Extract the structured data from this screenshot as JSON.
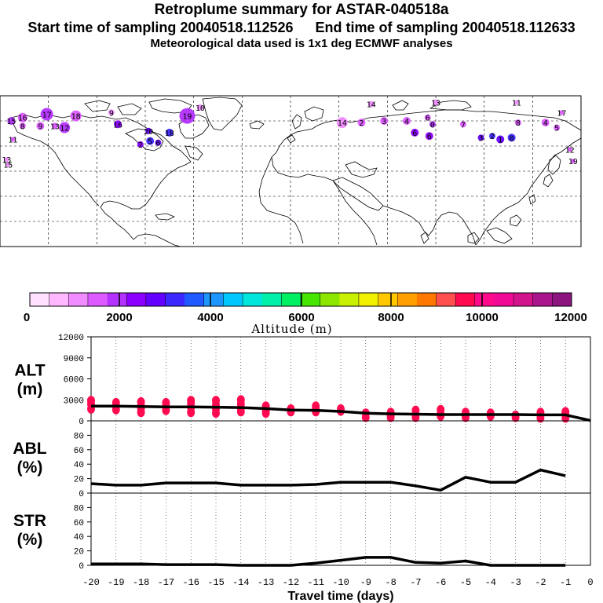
{
  "header": {
    "title": "Retroplume summary for ASTAR-040518a",
    "start_label": "Start time of sampling 20040518.112526",
    "end_label": "End time of sampling 20040518.112633",
    "met_label": "Meteorological data used is 1x1 deg ECMWF analyses"
  },
  "colorbar": {
    "colors": [
      "#ffe0ff",
      "#ffb8ff",
      "#f08cff",
      "#dc5aff",
      "#b432ff",
      "#8c00ff",
      "#6400ff",
      "#3c28ff",
      "#1e5aff",
      "#1e96ff",
      "#00c8ff",
      "#00e6dc",
      "#00f0aa",
      "#00f064",
      "#46e600",
      "#8ce600",
      "#c8f000",
      "#f0f000",
      "#ffc800",
      "#ffa000",
      "#ff7800",
      "#ff5050",
      "#ff0a50",
      "#ff0a8c",
      "#f00a96",
      "#d2148c",
      "#aa148c",
      "#8c147f"
    ],
    "ticks": [
      "0",
      "2000",
      "4000",
      "6000",
      "8000",
      "10000",
      "12000"
    ],
    "label": "Altitude (m)"
  },
  "map": {
    "clusters": [
      {
        "label": "15",
        "lon": -173,
        "lat": 75,
        "color": "#b432ff",
        "size": 5
      },
      {
        "label": "16",
        "lon": -166,
        "lat": 77,
        "color": "#dc5aff",
        "size": 6
      },
      {
        "label": "17",
        "lon": -151,
        "lat": 79,
        "color": "#b432ff",
        "size": 8
      },
      {
        "label": "18",
        "lon": -133,
        "lat": 78,
        "color": "#dc5aff",
        "size": 7
      },
      {
        "label": "9",
        "lon": -111,
        "lat": 80,
        "color": "#f08cff",
        "size": 4
      },
      {
        "label": "19",
        "lon": -64,
        "lat": 78,
        "color": "#b432ff",
        "size": 10
      },
      {
        "label": "10",
        "lon": -56,
        "lat": 83,
        "color": "#f08cff",
        "size": 4
      },
      {
        "label": "9",
        "lon": -155,
        "lat": 72,
        "color": "#dc5aff",
        "size": 5
      },
      {
        "label": "13",
        "lon": -146,
        "lat": 72,
        "color": "#dc5aff",
        "size": 4
      },
      {
        "label": "12",
        "lon": -140,
        "lat": 71,
        "color": "#b432ff",
        "size": 7
      },
      {
        "label": "8",
        "lon": -166,
        "lat": 72,
        "color": "#dc5aff",
        "size": 4
      },
      {
        "label": "16",
        "lon": -107,
        "lat": 73,
        "color": "#8c00ff",
        "size": 5
      },
      {
        "label": "20",
        "lon": -88,
        "lat": 69,
        "color": "#6400ff",
        "size": 4
      },
      {
        "label": "18",
        "lon": -75,
        "lat": 68,
        "color": "#3c28ff",
        "size": 5
      },
      {
        "label": "5",
        "lon": -87,
        "lat": 63,
        "color": "#3c28ff",
        "size": 5
      },
      {
        "label": "6",
        "lon": -82,
        "lat": 62,
        "color": "#6400ff",
        "size": 4
      },
      {
        "label": "2",
        "lon": -93,
        "lat": 61,
        "color": "#8c00ff",
        "size": 4
      },
      {
        "label": "11",
        "lon": -172,
        "lat": 64,
        "color": "#dc5aff",
        "size": 3
      },
      {
        "label": "13",
        "lon": -176,
        "lat": 52,
        "color": "#f08cff",
        "size": 3
      },
      {
        "label": "15",
        "lon": -175,
        "lat": 49,
        "color": "#f08cff",
        "size": 3
      },
      {
        "label": "14",
        "lon": 32,
        "lat": 74,
        "color": "#f08cff",
        "size": 7
      },
      {
        "label": "2",
        "lon": 44,
        "lat": 74,
        "color": "#dc5aff",
        "size": 5
      },
      {
        "label": "3",
        "lon": 58,
        "lat": 75,
        "color": "#dc5aff",
        "size": 5
      },
      {
        "label": "14",
        "lon": 50,
        "lat": 85,
        "color": "#f08cff",
        "size": 4
      },
      {
        "label": "4",
        "lon": 72,
        "lat": 75,
        "color": "#dc5aff",
        "size": 5
      },
      {
        "label": "6",
        "lon": 85,
        "lat": 77,
        "color": "#dc5aff",
        "size": 4
      },
      {
        "label": "13",
        "lon": 90,
        "lat": 86,
        "color": "#f08cff",
        "size": 4
      },
      {
        "label": "0",
        "lon": 88,
        "lat": 73,
        "color": "#b432ff",
        "size": 4
      },
      {
        "label": "7",
        "lon": 107,
        "lat": 73,
        "color": "#dc5aff",
        "size": 4
      },
      {
        "label": "11",
        "lon": 140,
        "lat": 86,
        "color": "#f08cff",
        "size": 3
      },
      {
        "label": "8",
        "lon": 141,
        "lat": 74,
        "color": "#dc5aff",
        "size": 4
      },
      {
        "label": "4",
        "lon": 158,
        "lat": 74,
        "color": "#dc5aff",
        "size": 5
      },
      {
        "label": "5",
        "lon": 165,
        "lat": 71,
        "color": "#dc5aff",
        "size": 4
      },
      {
        "label": "6",
        "lon": 77,
        "lat": 68,
        "color": "#8c00ff",
        "size": 5
      },
      {
        "label": "6",
        "lon": 86,
        "lat": 66,
        "color": "#8c00ff",
        "size": 5
      },
      {
        "label": "3",
        "lon": 118,
        "lat": 65,
        "color": "#6400ff",
        "size": 4
      },
      {
        "label": "2",
        "lon": 125,
        "lat": 66,
        "color": "#3c28ff",
        "size": 4
      },
      {
        "label": "1",
        "lon": 130,
        "lat": 64,
        "color": "#6400ff",
        "size": 5
      },
      {
        "label": "0",
        "lon": 137,
        "lat": 65,
        "color": "#3c28ff",
        "size": 5
      },
      {
        "label": "12",
        "lon": 173,
        "lat": 58,
        "color": "#dc5aff",
        "size": 3
      },
      {
        "label": "19",
        "lon": 175,
        "lat": 51,
        "color": "#dc5aff",
        "size": 3
      },
      {
        "label": "17",
        "lon": 168,
        "lat": 80,
        "color": "#dc5aff",
        "size": 3
      }
    ]
  },
  "chart_data": [
    {
      "type": "line",
      "title": "ALT (m)",
      "row_label": "ALT",
      "row_unit": "(m)",
      "x": [
        -20,
        -19,
        -18,
        -17,
        -16,
        -15,
        -14,
        -13,
        -12,
        -11,
        -10,
        -9,
        -8,
        -7,
        -6,
        -5,
        -4,
        -3,
        -2,
        -1,
        0
      ],
      "series": [
        {
          "name": "median altitude",
          "values": [
            2100,
            2100,
            2050,
            2000,
            2000,
            1950,
            1900,
            1750,
            1550,
            1500,
            1350,
            1100,
            1000,
            950,
            900,
            900,
            900,
            900,
            850,
            850,
            50
          ]
        }
      ],
      "scatter_samples": [
        {
          "x": -20,
          "y": [
            1700,
            2400,
            2900
          ]
        },
        {
          "x": -19,
          "y": [
            1600,
            2100,
            2600
          ]
        },
        {
          "x": -18,
          "y": [
            1200,
            1800,
            2200,
            2700
          ]
        },
        {
          "x": -17,
          "y": [
            1500,
            2100,
            2600
          ]
        },
        {
          "x": -16,
          "y": [
            1200,
            1900,
            2500,
            2900
          ]
        },
        {
          "x": -15,
          "y": [
            1100,
            1700,
            2300,
            2900
          ]
        },
        {
          "x": -14,
          "y": [
            1300,
            1800,
            2400,
            3000
          ]
        },
        {
          "x": -13,
          "y": [
            1100,
            1500,
            2100
          ]
        },
        {
          "x": -12,
          "y": [
            1300,
            1700
          ]
        },
        {
          "x": -11,
          "y": [
            1300,
            1700,
            2100
          ]
        },
        {
          "x": -10,
          "y": [
            1400,
            1700
          ]
        },
        {
          "x": -9,
          "y": [
            500,
            1100
          ]
        },
        {
          "x": -8,
          "y": [
            500,
            800,
            1200
          ]
        },
        {
          "x": -7,
          "y": [
            500,
            900,
            1500
          ]
        },
        {
          "x": -6,
          "y": [
            700,
            1000,
            1600
          ]
        },
        {
          "x": -5,
          "y": [
            500,
            900,
            1200
          ]
        },
        {
          "x": -4,
          "y": [
            700,
            1100
          ]
        },
        {
          "x": -3,
          "y": [
            500,
            800
          ]
        },
        {
          "x": -2,
          "y": [
            400,
            800,
            1200
          ]
        },
        {
          "x": -1,
          "y": [
            400,
            1000,
            1300
          ]
        }
      ],
      "ylim": [
        0,
        12000
      ],
      "yticks": [
        "0",
        "3000",
        "6000",
        "9000",
        "12000"
      ]
    },
    {
      "type": "line",
      "title": "ABL (%)",
      "row_label": "ABL",
      "row_unit": "(%)",
      "x": [
        -20,
        -19,
        -18,
        -17,
        -16,
        -15,
        -14,
        -13,
        -12,
        -11,
        -10,
        -9,
        -8,
        -7,
        -6,
        -5,
        -4,
        -3,
        -2,
        -1
      ],
      "series": [
        {
          "name": "ABL fraction",
          "values": [
            13,
            11,
            11,
            14,
            14,
            14,
            11,
            11,
            11,
            12,
            15,
            15,
            15,
            10,
            4,
            22,
            15,
            15,
            32,
            24
          ]
        }
      ],
      "ylim": [
        0,
        100
      ],
      "yticks": [
        "0",
        "20",
        "40",
        "60",
        "80"
      ]
    },
    {
      "type": "line",
      "title": "STR (%)",
      "row_label": "STR",
      "row_unit": "(%)",
      "x": [
        -20,
        -19,
        -18,
        -17,
        -16,
        -15,
        -14,
        -13,
        -12,
        -11,
        -10,
        -9,
        -8,
        -7,
        -6,
        -5,
        -4,
        -3,
        -2,
        -1
      ],
      "series": [
        {
          "name": "STR fraction",
          "values": [
            2,
            2,
            2,
            1,
            1,
            1,
            0,
            0,
            0,
            3,
            7,
            11,
            11,
            4,
            3,
            6,
            0,
            0,
            0,
            0
          ]
        }
      ],
      "ylim": [
        0,
        100
      ],
      "yticks": [
        "0",
        "20",
        "40",
        "60",
        "80"
      ],
      "xticks": [
        "-20",
        "-19",
        "-18",
        "-17",
        "-16",
        "-15",
        "-14",
        "-13",
        "-12",
        "-11",
        "-10",
        "-9",
        "-8",
        "-7",
        "-6",
        "-5",
        "-4",
        "-3",
        "-2",
        "-1",
        "0"
      ],
      "xlabel": "Travel time (days)"
    }
  ]
}
